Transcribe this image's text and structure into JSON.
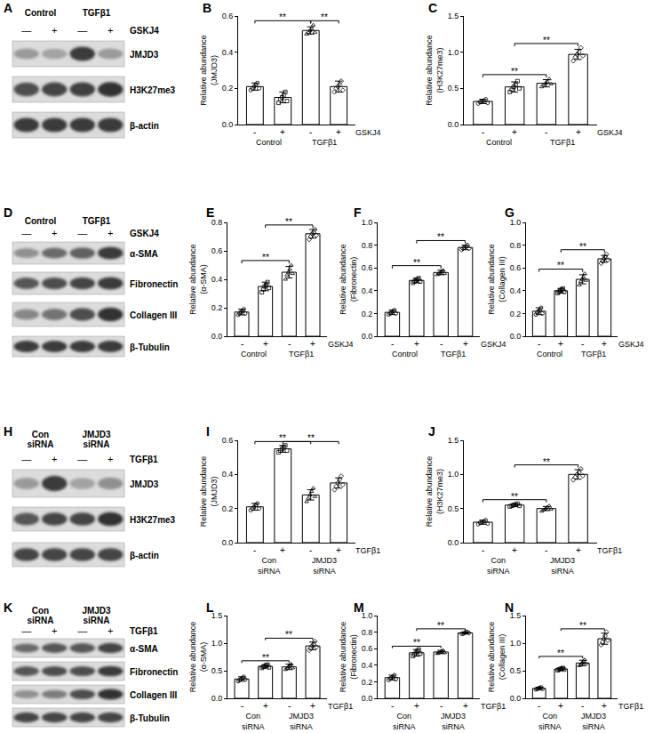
{
  "chart_data": [
    {
      "panel": "B",
      "type": "bar",
      "y_label": [
        "Relative abundance",
        "(JMJD3)"
      ],
      "categories": [
        "-",
        "+",
        "-",
        "+"
      ],
      "groups": [
        [
          "Control"
        ],
        [
          "TGFβ1"
        ]
      ],
      "treatment": "GSKJ4",
      "values": [
        0.21,
        0.15,
        0.52,
        0.21
      ],
      "errors": [
        0.02,
        0.03,
        0.02,
        0.03
      ],
      "points": [
        [
          0.19,
          0.2,
          0.21,
          0.22,
          0.23,
          0.2
        ],
        [
          0.12,
          0.14,
          0.15,
          0.16,
          0.18,
          0.13
        ],
        [
          0.5,
          0.51,
          0.52,
          0.53,
          0.55,
          0.51
        ],
        [
          0.18,
          0.2,
          0.21,
          0.22,
          0.24,
          0.19
        ]
      ],
      "ylim": [
        0,
        0.6
      ],
      "yticks": [
        {
          "value": 0,
          "label": "0.0"
        },
        {
          "value": 0.2,
          "label": "0.2"
        },
        {
          "value": 0.4,
          "label": "0.4"
        },
        {
          "value": 0.6,
          "label": "0.6"
        }
      ],
      "significance": [
        {
          "from": 0,
          "to": 2,
          "label": "**"
        },
        {
          "from": 2,
          "to": 3,
          "label": "**"
        }
      ],
      "grid": false
    },
    {
      "panel": "C",
      "type": "bar",
      "y_label": [
        "Relative abundance",
        "(H3K27me3)"
      ],
      "categories": [
        "-",
        "+",
        "-",
        "+"
      ],
      "groups": [
        [
          "Control"
        ],
        [
          "TGFβ1"
        ]
      ],
      "treatment": "GSKJ4",
      "values": [
        0.32,
        0.52,
        0.57,
        0.97
      ],
      "errors": [
        0.03,
        0.07,
        0.05,
        0.07
      ],
      "points": [
        [
          0.29,
          0.31,
          0.32,
          0.33,
          0.35,
          0.3
        ],
        [
          0.45,
          0.48,
          0.52,
          0.55,
          0.6,
          0.5
        ],
        [
          0.52,
          0.55,
          0.57,
          0.59,
          0.63,
          0.56
        ],
        [
          0.88,
          0.93,
          0.97,
          1.0,
          1.06,
          0.95
        ]
      ],
      "ylim": [
        0,
        1.5
      ],
      "yticks": [
        {
          "value": 0,
          "label": "0.0"
        },
        {
          "value": 0.5,
          "label": "0.5"
        },
        {
          "value": 1,
          "label": "1.0"
        },
        {
          "value": 1.5,
          "label": "1.5"
        }
      ],
      "significance": [
        {
          "from": 0,
          "to": 2,
          "label": "**"
        },
        {
          "from": 1,
          "to": 3,
          "label": "**"
        }
      ],
      "grid": false
    },
    {
      "panel": "E",
      "type": "bar",
      "y_label": [
        "Relative abundance",
        "(α-SMA)"
      ],
      "categories": [
        "-",
        "+",
        "-",
        "+"
      ],
      "groups": [
        [
          "Control"
        ],
        [
          "TGFβ1"
        ]
      ],
      "treatment": "GSKJ4",
      "values": [
        0.17,
        0.35,
        0.45,
        0.72
      ],
      "errors": [
        0.02,
        0.03,
        0.04,
        0.03
      ],
      "points": [
        [
          0.15,
          0.16,
          0.17,
          0.18,
          0.19,
          0.16
        ],
        [
          0.31,
          0.33,
          0.35,
          0.36,
          0.38,
          0.34
        ],
        [
          0.4,
          0.43,
          0.45,
          0.47,
          0.5,
          0.44
        ],
        [
          0.68,
          0.7,
          0.72,
          0.73,
          0.75,
          0.71
        ]
      ],
      "ylim": [
        0,
        0.8
      ],
      "yticks": [
        {
          "value": 0,
          "label": "0.0"
        },
        {
          "value": 0.2,
          "label": "0.2"
        },
        {
          "value": 0.4,
          "label": "0.4"
        },
        {
          "value": 0.6,
          "label": "0.6"
        },
        {
          "value": 0.8,
          "label": "0.8"
        }
      ],
      "significance": [
        {
          "from": 0,
          "to": 2,
          "label": "**"
        },
        {
          "from": 1,
          "to": 3,
          "label": "**"
        }
      ],
      "grid": false
    },
    {
      "panel": "F",
      "type": "bar",
      "y_label": [
        "Relative abundance",
        "(Fibronectin)"
      ],
      "categories": [
        "-",
        "+",
        "-",
        "+"
      ],
      "groups": [
        [
          "Control"
        ],
        [
          "TGFβ1"
        ]
      ],
      "treatment": "GSKJ4",
      "values": [
        0.21,
        0.49,
        0.56,
        0.78
      ],
      "errors": [
        0.02,
        0.02,
        0.02,
        0.02
      ],
      "points": [
        [
          0.19,
          0.2,
          0.21,
          0.22,
          0.23,
          0.2
        ],
        [
          0.47,
          0.48,
          0.49,
          0.5,
          0.51,
          0.48
        ],
        [
          0.54,
          0.55,
          0.56,
          0.57,
          0.58,
          0.55
        ],
        [
          0.76,
          0.77,
          0.78,
          0.79,
          0.8,
          0.77
        ]
      ],
      "ylim": [
        0,
        1
      ],
      "yticks": [
        {
          "value": 0,
          "label": "0.0"
        },
        {
          "value": 0.2,
          "label": "0.2"
        },
        {
          "value": 0.4,
          "label": "0.4"
        },
        {
          "value": 0.6,
          "label": "0.6"
        },
        {
          "value": 0.8,
          "label": "0.8"
        },
        {
          "value": 1,
          "label": "1.0"
        }
      ],
      "significance": [
        {
          "from": 0,
          "to": 2,
          "label": "**"
        },
        {
          "from": 1,
          "to": 3,
          "label": "**"
        }
      ],
      "grid": false
    },
    {
      "panel": "G",
      "type": "bar",
      "y_label": [
        "Relative abundance",
        "(Collagen III)"
      ],
      "categories": [
        "-",
        "+",
        "-",
        "+"
      ],
      "groups": [
        [
          "Control"
        ],
        [
          "TGFβ1"
        ]
      ],
      "treatment": "GSKJ4",
      "values": [
        0.22,
        0.4,
        0.5,
        0.68
      ],
      "errors": [
        0.03,
        0.02,
        0.04,
        0.03
      ],
      "points": [
        [
          0.19,
          0.21,
          0.22,
          0.23,
          0.25,
          0.2
        ],
        [
          0.38,
          0.39,
          0.4,
          0.41,
          0.42,
          0.39
        ],
        [
          0.45,
          0.48,
          0.5,
          0.52,
          0.55,
          0.49
        ],
        [
          0.64,
          0.66,
          0.68,
          0.7,
          0.72,
          0.67
        ]
      ],
      "ylim": [
        0,
        1
      ],
      "yticks": [
        {
          "value": 0,
          "label": "0.0"
        },
        {
          "value": 0.2,
          "label": "0.2"
        },
        {
          "value": 0.4,
          "label": "0.4"
        },
        {
          "value": 0.6,
          "label": "0.6"
        },
        {
          "value": 0.8,
          "label": "0.8"
        },
        {
          "value": 1,
          "label": "1.0"
        }
      ],
      "significance": [
        {
          "from": 0,
          "to": 2,
          "label": "**"
        },
        {
          "from": 1,
          "to": 3,
          "label": "**"
        }
      ],
      "grid": false
    },
    {
      "panel": "I",
      "type": "bar",
      "y_label": [
        "Relative abundance",
        "(JMJD3)"
      ],
      "categories": [
        "-",
        "+",
        "-",
        "+"
      ],
      "groups": [
        [
          "Con",
          "siRNA"
        ],
        [
          "JMJD3",
          "siRNA"
        ]
      ],
      "treatment": "TGFβ1",
      "values": [
        0.21,
        0.55,
        0.28,
        0.35
      ],
      "errors": [
        0.02,
        0.02,
        0.03,
        0.03
      ],
      "points": [
        [
          0.19,
          0.2,
          0.21,
          0.22,
          0.23,
          0.2
        ],
        [
          0.53,
          0.54,
          0.55,
          0.56,
          0.57,
          0.54
        ],
        [
          0.24,
          0.26,
          0.28,
          0.3,
          0.32,
          0.27
        ],
        [
          0.31,
          0.33,
          0.35,
          0.37,
          0.39,
          0.34
        ]
      ],
      "ylim": [
        0,
        0.6
      ],
      "yticks": [
        {
          "value": 0,
          "label": "0.0"
        },
        {
          "value": 0.2,
          "label": "0.2"
        },
        {
          "value": 0.4,
          "label": "0.4"
        },
        {
          "value": 0.6,
          "label": "0.6"
        }
      ],
      "significance": [
        {
          "from": 0,
          "to": 2,
          "label": "**"
        },
        {
          "from": 1,
          "to": 3,
          "label": "**"
        }
      ],
      "grid": false
    },
    {
      "panel": "J",
      "type": "bar",
      "y_label": [
        "Relative abundance",
        "(H3K27me3)"
      ],
      "categories": [
        "-",
        "+",
        "-",
        "+"
      ],
      "groups": [
        [
          "Con",
          "siRNA"
        ],
        [
          "JMJD3",
          "siRNA"
        ]
      ],
      "treatment": "TGFβ1",
      "values": [
        0.3,
        0.55,
        0.5,
        1.0
      ],
      "errors": [
        0.03,
        0.02,
        0.03,
        0.07
      ],
      "points": [
        [
          0.27,
          0.29,
          0.3,
          0.31,
          0.33,
          0.28
        ],
        [
          0.53,
          0.54,
          0.55,
          0.56,
          0.57,
          0.54
        ],
        [
          0.46,
          0.48,
          0.5,
          0.52,
          0.54,
          0.49
        ],
        [
          0.92,
          0.96,
          1.0,
          1.03,
          1.08,
          0.98
        ]
      ],
      "ylim": [
        0,
        1.5
      ],
      "yticks": [
        {
          "value": 0,
          "label": "0.0"
        },
        {
          "value": 0.5,
          "label": "0.5"
        },
        {
          "value": 1,
          "label": "1.0"
        },
        {
          "value": 1.5,
          "label": "1.5"
        }
      ],
      "significance": [
        {
          "from": 0,
          "to": 2,
          "label": "**"
        },
        {
          "from": 1,
          "to": 3,
          "label": "**"
        }
      ],
      "grid": false
    },
    {
      "panel": "L",
      "type": "bar",
      "y_label": [
        "Relative abundance",
        "(α-SMA)"
      ],
      "categories": [
        "-",
        "+",
        "-",
        "+"
      ],
      "groups": [
        [
          "Con",
          "siRNA"
        ],
        [
          "JMJD3",
          "siRNA"
        ]
      ],
      "treatment": "TGFβ1",
      "values": [
        0.35,
        0.58,
        0.57,
        0.95
      ],
      "errors": [
        0.04,
        0.03,
        0.05,
        0.07
      ],
      "points": [
        [
          0.31,
          0.33,
          0.35,
          0.37,
          0.39,
          0.34
        ],
        [
          0.55,
          0.57,
          0.58,
          0.6,
          0.61,
          0.56
        ],
        [
          0.52,
          0.55,
          0.57,
          0.6,
          0.62,
          0.55
        ],
        [
          0.87,
          0.91,
          0.95,
          0.98,
          1.03,
          0.93
        ]
      ],
      "ylim": [
        0,
        1.5
      ],
      "yticks": [
        {
          "value": 0,
          "label": "0.0"
        },
        {
          "value": 0.5,
          "label": "0.5"
        },
        {
          "value": 1,
          "label": "1.0"
        },
        {
          "value": 1.5,
          "label": "1.5"
        }
      ],
      "significance": [
        {
          "from": 0,
          "to": 2,
          "label": "**"
        },
        {
          "from": 1,
          "to": 3,
          "label": "**"
        }
      ],
      "grid": false
    },
    {
      "panel": "M",
      "type": "bar",
      "y_label": [
        "Relative abundance",
        "(Fibronectin)"
      ],
      "categories": [
        "-",
        "+",
        "-",
        "+"
      ],
      "groups": [
        [
          "Con",
          "siRNA"
        ],
        [
          "JMJD3",
          "siRNA"
        ]
      ],
      "treatment": "TGFβ1",
      "values": [
        0.25,
        0.55,
        0.56,
        0.79
      ],
      "errors": [
        0.03,
        0.04,
        0.02,
        0.01
      ],
      "points": [
        [
          0.22,
          0.24,
          0.25,
          0.26,
          0.28,
          0.23
        ],
        [
          0.51,
          0.53,
          0.55,
          0.57,
          0.59,
          0.54
        ],
        [
          0.54,
          0.55,
          0.56,
          0.57,
          0.58,
          0.55
        ],
        [
          0.78,
          0.78,
          0.79,
          0.8,
          0.8,
          0.79
        ]
      ],
      "ylim": [
        0,
        1
      ],
      "yticks": [
        {
          "value": 0,
          "label": "0.0"
        },
        {
          "value": 0.2,
          "label": "0.2"
        },
        {
          "value": 0.4,
          "label": "0.4"
        },
        {
          "value": 0.6,
          "label": "0.6"
        },
        {
          "value": 0.8,
          "label": "0.8"
        },
        {
          "value": 1,
          "label": "1.0"
        }
      ],
      "significance": [
        {
          "from": 0,
          "to": 2,
          "label": "**"
        },
        {
          "from": 1,
          "to": 3,
          "label": "**"
        }
      ],
      "grid": false
    },
    {
      "panel": "N",
      "type": "bar",
      "y_label": [
        "Relative abundance",
        "(Collagen III)"
      ],
      "categories": [
        "-",
        "+",
        "-",
        "+"
      ],
      "groups": [
        [
          "Con",
          "siRNA"
        ],
        [
          "JMJD3",
          "siRNA"
        ]
      ],
      "treatment": "TGFβ1",
      "values": [
        0.18,
        0.53,
        0.64,
        1.08
      ],
      "errors": [
        0.02,
        0.02,
        0.05,
        0.1
      ],
      "points": [
        [
          0.16,
          0.17,
          0.18,
          0.19,
          0.2,
          0.17
        ],
        [
          0.51,
          0.52,
          0.53,
          0.54,
          0.55,
          0.52
        ],
        [
          0.59,
          0.61,
          0.64,
          0.67,
          0.7,
          0.63
        ],
        [
          0.97,
          1.02,
          1.08,
          1.13,
          1.2,
          1.05
        ]
      ],
      "ylim": [
        0,
        1.5
      ],
      "yticks": [
        {
          "value": 0,
          "label": "0.0"
        },
        {
          "value": 0.5,
          "label": "0.5"
        },
        {
          "value": 1,
          "label": "1.0"
        },
        {
          "value": 1.5,
          "label": "1.5"
        }
      ],
      "significance": [
        {
          "from": 0,
          "to": 2,
          "label": "**"
        },
        {
          "from": 1,
          "to": 3,
          "label": "**"
        }
      ],
      "grid": false
    }
  ],
  "blots": [
    {
      "panel": "A",
      "groups": [
        [
          "Control"
        ],
        [
          "TGFβ1"
        ]
      ],
      "treatment": "GSKJ4",
      "signs": [
        "—",
        "+",
        "—",
        "+"
      ],
      "rows": [
        "JMJD3",
        "H3K27me3",
        "β-actin"
      ]
    },
    {
      "panel": "D",
      "groups": [
        [
          "Control"
        ],
        [
          "TGFβ1"
        ]
      ],
      "treatment": "GSKJ4",
      "signs": [
        "—",
        "+",
        "—",
        "+"
      ],
      "rows": [
        "α-SMA",
        "Fibronectin",
        "Collagen III",
        "β-Tubulin"
      ]
    },
    {
      "panel": "H",
      "groups": [
        [
          "Con",
          "siRNA"
        ],
        [
          "JMJD3",
          "siRNA"
        ]
      ],
      "treatment": "TGFβ1",
      "signs": [
        "—",
        "+",
        "—",
        "+"
      ],
      "rows": [
        "JMJD3",
        "H3K27me3",
        "β-actin"
      ]
    },
    {
      "panel": "K",
      "groups": [
        [
          "Con",
          "siRNA"
        ],
        [
          "JMJD3",
          "siRNA"
        ]
      ],
      "treatment": "TGFβ1",
      "signs": [
        "—",
        "+",
        "—",
        "+"
      ],
      "rows": [
        "α-SMA",
        "Fibronectin",
        "Collagen III",
        "β-Tubulin"
      ]
    }
  ]
}
